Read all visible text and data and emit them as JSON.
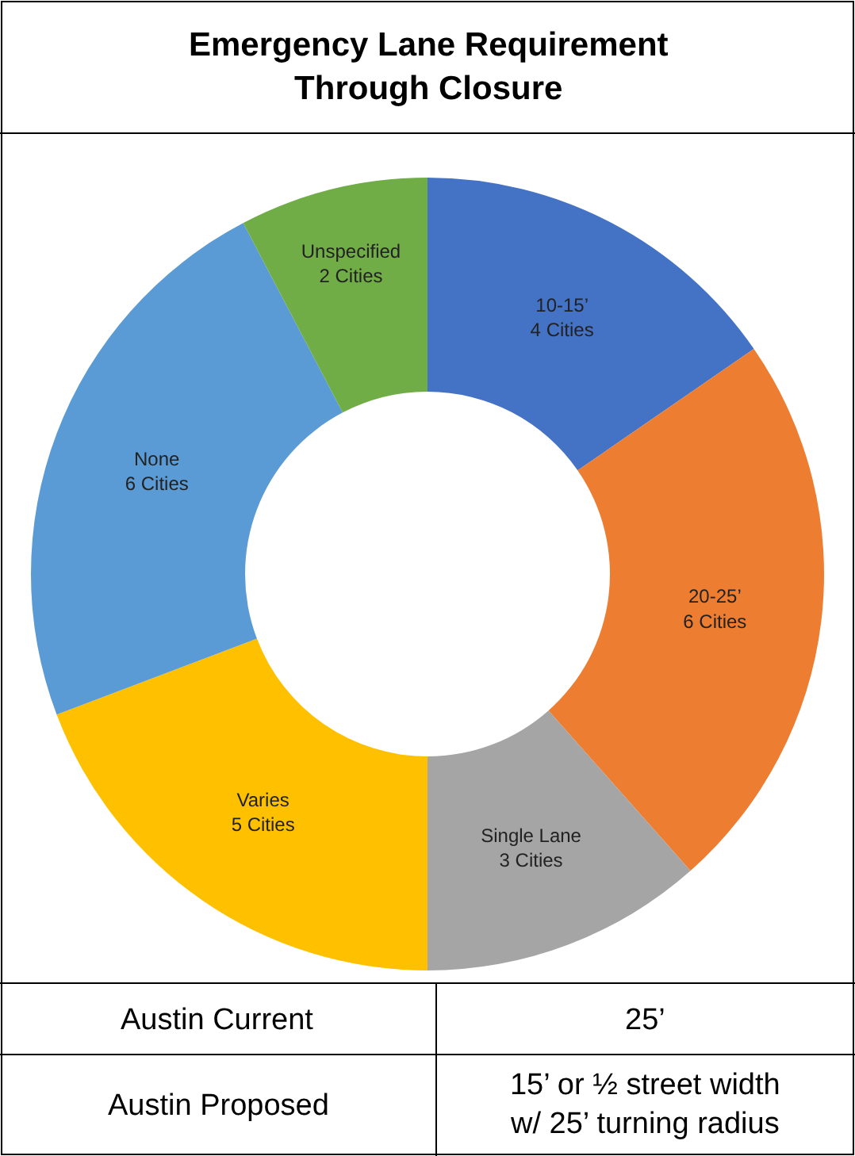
{
  "chart_data": {
    "type": "donut",
    "title": "Emergency Lane Requirement Through Closure",
    "categories": [
      "10-15’",
      "20-25’",
      "Single Lane",
      "Varies",
      "None",
      "Unspecified"
    ],
    "values": [
      4,
      6,
      3,
      5,
      6,
      2
    ],
    "value_labels": [
      "4 Cities",
      "6 Cities",
      "3 Cities",
      "5 Cities",
      "6 Cities",
      "2 Cities"
    ],
    "colors": [
      "#4472c4",
      "#ed7d31",
      "#a5a5a5",
      "#ffc000",
      "#5b9bd5",
      "#70ad47"
    ],
    "legend": false,
    "annotations": [
      "Austin Current",
      "25’",
      "Austin Proposed",
      "15’ or ½ street width w/ 25’ turning radius"
    ]
  }
}
